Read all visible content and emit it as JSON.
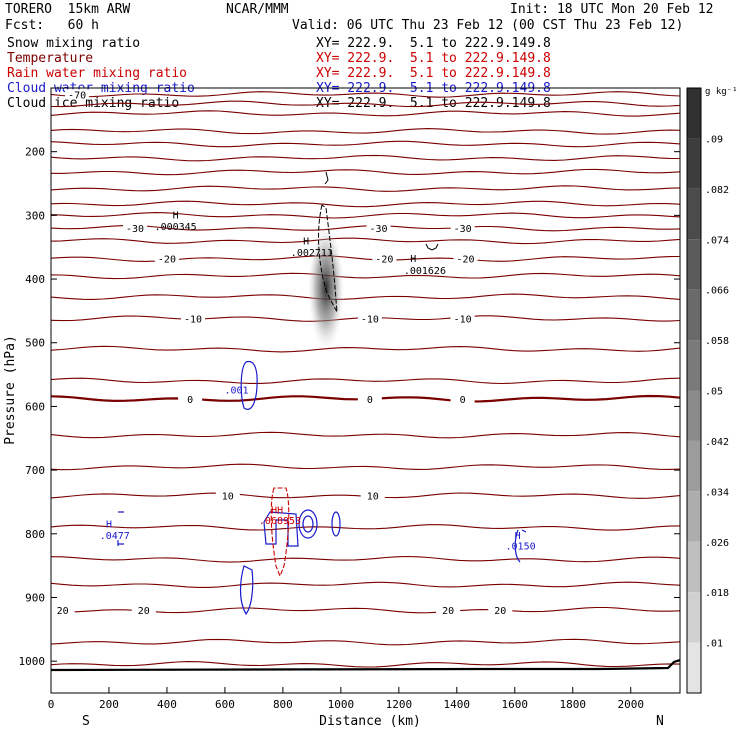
{
  "header": {
    "model": "TORERO  15km ARW",
    "org": "NCAR/MMM",
    "init": "Init: 18 UTC Mon 20 Feb 12",
    "fcst": "Fcst:   60 h",
    "valid": "Valid: 06 UTC Thu 23 Feb 12 (00 CST Thu 23 Feb 12)"
  },
  "legend": [
    {
      "name": "Snow mixing ratio",
      "xy": "XY= 222.9.  5.1 to 222.9.149.8",
      "color": "#000000"
    },
    {
      "name": "Temperature",
      "xy": "XY= 222.9.  5.1 to 222.9.149.8",
      "color": "#7a0000"
    },
    {
      "name": "Rain water mixing ratio",
      "xy": "XY= 222.9.  5.1 to 222.9.149.8",
      "color": "#cc0000"
    },
    {
      "name": "Cloud water mixing ratio",
      "xy": "XY= 222.9.  5.1 to 222.9.149.8",
      "color": "#1a1acc"
    },
    {
      "name": "Cloud ice mixing ratio",
      "xy": "XY= 222.9.  5.1 to 222.9.149.8",
      "color": "#000000"
    }
  ],
  "chart_data": {
    "type": "contour cross-section",
    "xlabel": "Distance (km)",
    "ylabel": "Pressure (hPa)",
    "xlim": [
      0,
      2170
    ],
    "ylim": [
      1050,
      100
    ],
    "x_ticks": [
      0,
      200,
      400,
      600,
      800,
      1000,
      1200,
      1400,
      1600,
      1800,
      2000
    ],
    "y_ticks": [
      200,
      300,
      400,
      500,
      600,
      700,
      800,
      900,
      1000
    ],
    "x_end_labels": {
      "left": "S",
      "right": "N"
    },
    "colorbar": {
      "unit": "g kg⁻¹",
      "labels": [
        ".09",
        ".082",
        ".074",
        ".066",
        ".058",
        ".05",
        ".042",
        ".034",
        ".026",
        ".018",
        ".01"
      ],
      "colors": [
        "#303030",
        "#3d3d3d",
        "#4b4b4b",
        "#5a5a5a",
        "#6a6a6a",
        "#7a7a7a",
        "#8b8b8b",
        "#9c9c9c",
        "#adadad",
        "#bfbfbf",
        "#d1d1d1",
        "#e4e4e4"
      ]
    },
    "temperature_lines": [
      {
        "p": 110,
        "label": "-70"
      },
      {
        "p": 125
      },
      {
        "p": 140
      },
      {
        "p": 168
      },
      {
        "p": 188
      },
      {
        "p": 210
      },
      {
        "p": 232
      },
      {
        "p": 258
      },
      {
        "p": 282
      },
      {
        "p": 300
      },
      {
        "p": 320,
        "label": "-30"
      },
      {
        "p": 340
      },
      {
        "p": 368,
        "label": "-20"
      },
      {
        "p": 395
      },
      {
        "p": 428
      },
      {
        "p": 462,
        "label": "-10"
      },
      {
        "p": 510
      },
      {
        "p": 560
      },
      {
        "p": 588,
        "label": "0",
        "bold": true
      },
      {
        "p": 645
      },
      {
        "p": 695
      },
      {
        "p": 740,
        "label": "10"
      },
      {
        "p": 790
      },
      {
        "p": 840
      },
      {
        "p": 880
      },
      {
        "p": 920,
        "label": "20"
      },
      {
        "p": 970
      },
      {
        "p": 1005
      }
    ],
    "temp_label_x": [
      {
        "p": 110,
        "xs": [
          90
        ]
      },
      {
        "p": 320,
        "xs": [
          290,
          1130,
          1420
        ]
      },
      {
        "p": 368,
        "xs": [
          400,
          1150,
          1430
        ]
      },
      {
        "p": 462,
        "xs": [
          490,
          1100,
          1420
        ]
      },
      {
        "p": 588,
        "xs": [
          480,
          1100,
          1420
        ]
      },
      {
        "p": 740,
        "xs": [
          610,
          1110
        ]
      },
      {
        "p": 920,
        "xs": [
          40,
          320,
          1370,
          1550
        ]
      }
    ],
    "annotations": [
      {
        "x": 430,
        "p": 305,
        "text": "H",
        "color": "#000000"
      },
      {
        "x": 430,
        "p": 323,
        "text": ".000345",
        "color": "#000000"
      },
      {
        "x": 880,
        "p": 346,
        "text": "H",
        "color": "#000000"
      },
      {
        "x": 900,
        "p": 364,
        "text": ".002711",
        "color": "#000000"
      },
      {
        "x": 1250,
        "p": 373,
        "text": "H",
        "color": "#000000"
      },
      {
        "x": 1290,
        "p": 392,
        "text": ".001626",
        "color": "#000000"
      },
      {
        "x": 640,
        "p": 580,
        "text": ".001",
        "color": "#1a1acc"
      },
      {
        "x": 780,
        "p": 768,
        "text": "HH",
        "color": "#cc0000"
      },
      {
        "x": 790,
        "p": 785,
        "text": ".068953",
        "color": "#cc0000"
      },
      {
        "x": 200,
        "p": 790,
        "text": "H",
        "color": "#1a1acc"
      },
      {
        "x": 220,
        "p": 808,
        "text": ".0477",
        "color": "#1a1acc"
      },
      {
        "x": 1610,
        "p": 808,
        "text": "H",
        "color": "#1a1acc"
      },
      {
        "x": 1620,
        "p": 825,
        "text": ".0150",
        "color": "#1a1acc"
      }
    ]
  }
}
